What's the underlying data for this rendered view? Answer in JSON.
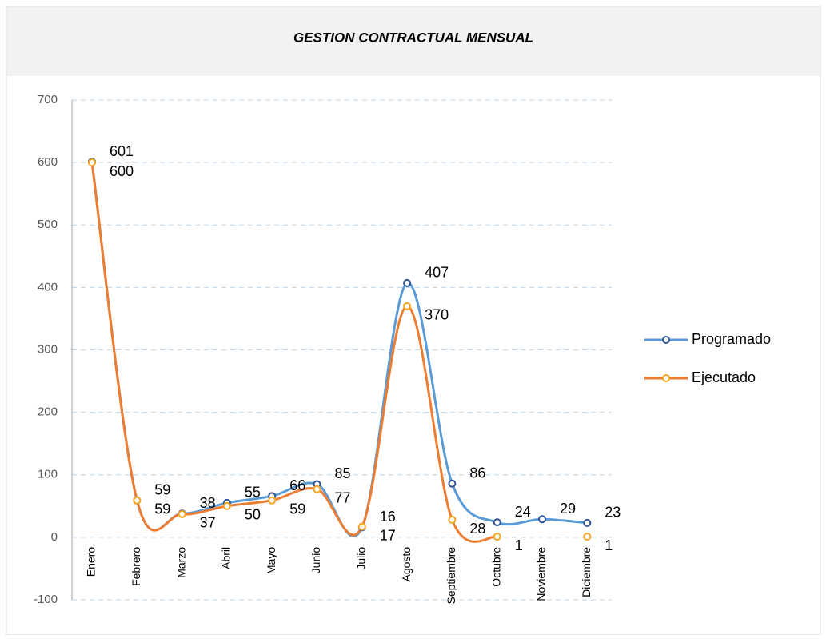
{
  "chart_data": {
    "type": "line",
    "title": "GESTION CONTRACTUAL MENSUAL",
    "categories": [
      "Enero",
      "Febrero",
      "Marzo",
      "Abril",
      "Mayo",
      "Junio",
      "Julio",
      "Agosto",
      "Septiembre",
      "Octubre",
      "Noviembre",
      "Diciembre"
    ],
    "series": [
      {
        "name": "Programado",
        "color": "#5b9bd5",
        "marker_color": "#2e5597",
        "values": [
          601,
          59,
          38,
          55,
          66,
          85,
          16,
          407,
          86,
          24,
          29,
          23
        ]
      },
      {
        "name": "Ejecutado",
        "color": "#ed7d31",
        "marker_color": "#f5a623",
        "values": [
          600,
          59,
          37,
          50,
          59,
          77,
          17,
          370,
          28,
          1,
          null,
          1
        ]
      }
    ],
    "ylim": [
      -100,
      700
    ],
    "yticks": [
      -100,
      0,
      100,
      200,
      300,
      400,
      500,
      600,
      700
    ],
    "grid": true,
    "smooth": true,
    "legend": "right"
  }
}
